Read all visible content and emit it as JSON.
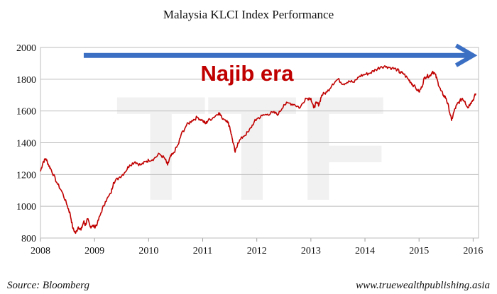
{
  "chart_data": {
    "type": "line",
    "title": "Malaysia KLCI Index Performance",
    "xlabel": "",
    "ylabel": "",
    "xlim": [
      2008,
      2016.1
    ],
    "ylim": [
      800,
      2000
    ],
    "x_ticks": [
      "2008",
      "2009",
      "2010",
      "2011",
      "2012",
      "2013",
      "2014",
      "2015",
      "2016"
    ],
    "y_ticks": [
      "800",
      "1000",
      "1200",
      "1400",
      "1600",
      "1800",
      "2000"
    ],
    "grid": "horizontal",
    "line_color": "#c00000",
    "series": [
      {
        "x": [
          2008.0,
          2008.05,
          2008.1,
          2008.15,
          2008.2,
          2008.3,
          2008.4,
          2008.5,
          2008.55,
          2008.6,
          2008.65,
          2008.7,
          2008.75,
          2008.8,
          2008.83,
          2008.87,
          2008.92,
          2008.96,
          2009.0,
          2009.05,
          2009.12,
          2009.2,
          2009.3,
          2009.35,
          2009.45,
          2009.55,
          2009.65,
          2009.75,
          2009.85,
          2009.95,
          2010.0,
          2010.1,
          2010.2,
          2010.3,
          2010.35,
          2010.4,
          2010.45,
          2010.55,
          2010.6,
          2010.7,
          2010.8,
          2010.9,
          2011.0,
          2011.05,
          2011.1,
          2011.2,
          2011.3,
          2011.35,
          2011.45,
          2011.5,
          2011.55,
          2011.6,
          2011.65,
          2011.75,
          2011.85,
          2011.95,
          2012.0,
          2012.1,
          2012.2,
          2012.3,
          2012.4,
          2012.5,
          2012.6,
          2012.7,
          2012.8,
          2012.9,
          2013.0,
          2013.05,
          2013.1,
          2013.15,
          2013.2,
          2013.3,
          2013.4,
          2013.5,
          2013.6,
          2013.7,
          2013.8,
          2013.9,
          2014.0,
          2014.1,
          2014.2,
          2014.3,
          2014.4,
          2014.5,
          2014.6,
          2014.65,
          2014.7,
          2014.8,
          2014.85,
          2014.9,
          2015.0,
          2015.05,
          2015.1,
          2015.15,
          2015.2,
          2015.25,
          2015.3,
          2015.35,
          2015.4,
          2015.45,
          2015.5,
          2015.55,
          2015.6,
          2015.65,
          2015.7,
          2015.75,
          2015.8,
          2015.85,
          2015.9,
          2015.95,
          2016.0,
          2016.05
        ],
        "y": [
          1220,
          1280,
          1300,
          1260,
          1230,
          1150,
          1090,
          1000,
          950,
          860,
          830,
          870,
          850,
          905,
          880,
          920,
          870,
          880,
          870,
          890,
          960,
          1030,
          1080,
          1150,
          1180,
          1210,
          1260,
          1280,
          1260,
          1280,
          1290,
          1300,
          1330,
          1300,
          1260,
          1310,
          1330,
          1390,
          1450,
          1510,
          1540,
          1560,
          1540,
          1520,
          1540,
          1560,
          1590,
          1560,
          1540,
          1500,
          1420,
          1340,
          1400,
          1440,
          1470,
          1530,
          1550,
          1570,
          1580,
          1590,
          1580,
          1640,
          1650,
          1640,
          1620,
          1680,
          1680,
          1620,
          1650,
          1640,
          1700,
          1720,
          1770,
          1800,
          1770,
          1790,
          1780,
          1820,
          1830,
          1840,
          1860,
          1880,
          1880,
          1870,
          1860,
          1840,
          1840,
          1800,
          1780,
          1760,
          1720,
          1750,
          1810,
          1820,
          1820,
          1850,
          1830,
          1780,
          1730,
          1700,
          1680,
          1620,
          1540,
          1600,
          1640,
          1660,
          1680,
          1660,
          1620,
          1650,
          1670,
          1710
        ]
      }
    ],
    "annotation": {
      "text": "Najib era",
      "color": "#c00000",
      "arrow_from": 2008.8,
      "arrow_to": 2016.0,
      "arrow_at_y": 1950,
      "arrow_color": "#3b6fc4"
    },
    "watermark_text": "TTF",
    "source": "Source: Bloomberg",
    "site": "www.truewealthpublishing.asia"
  }
}
